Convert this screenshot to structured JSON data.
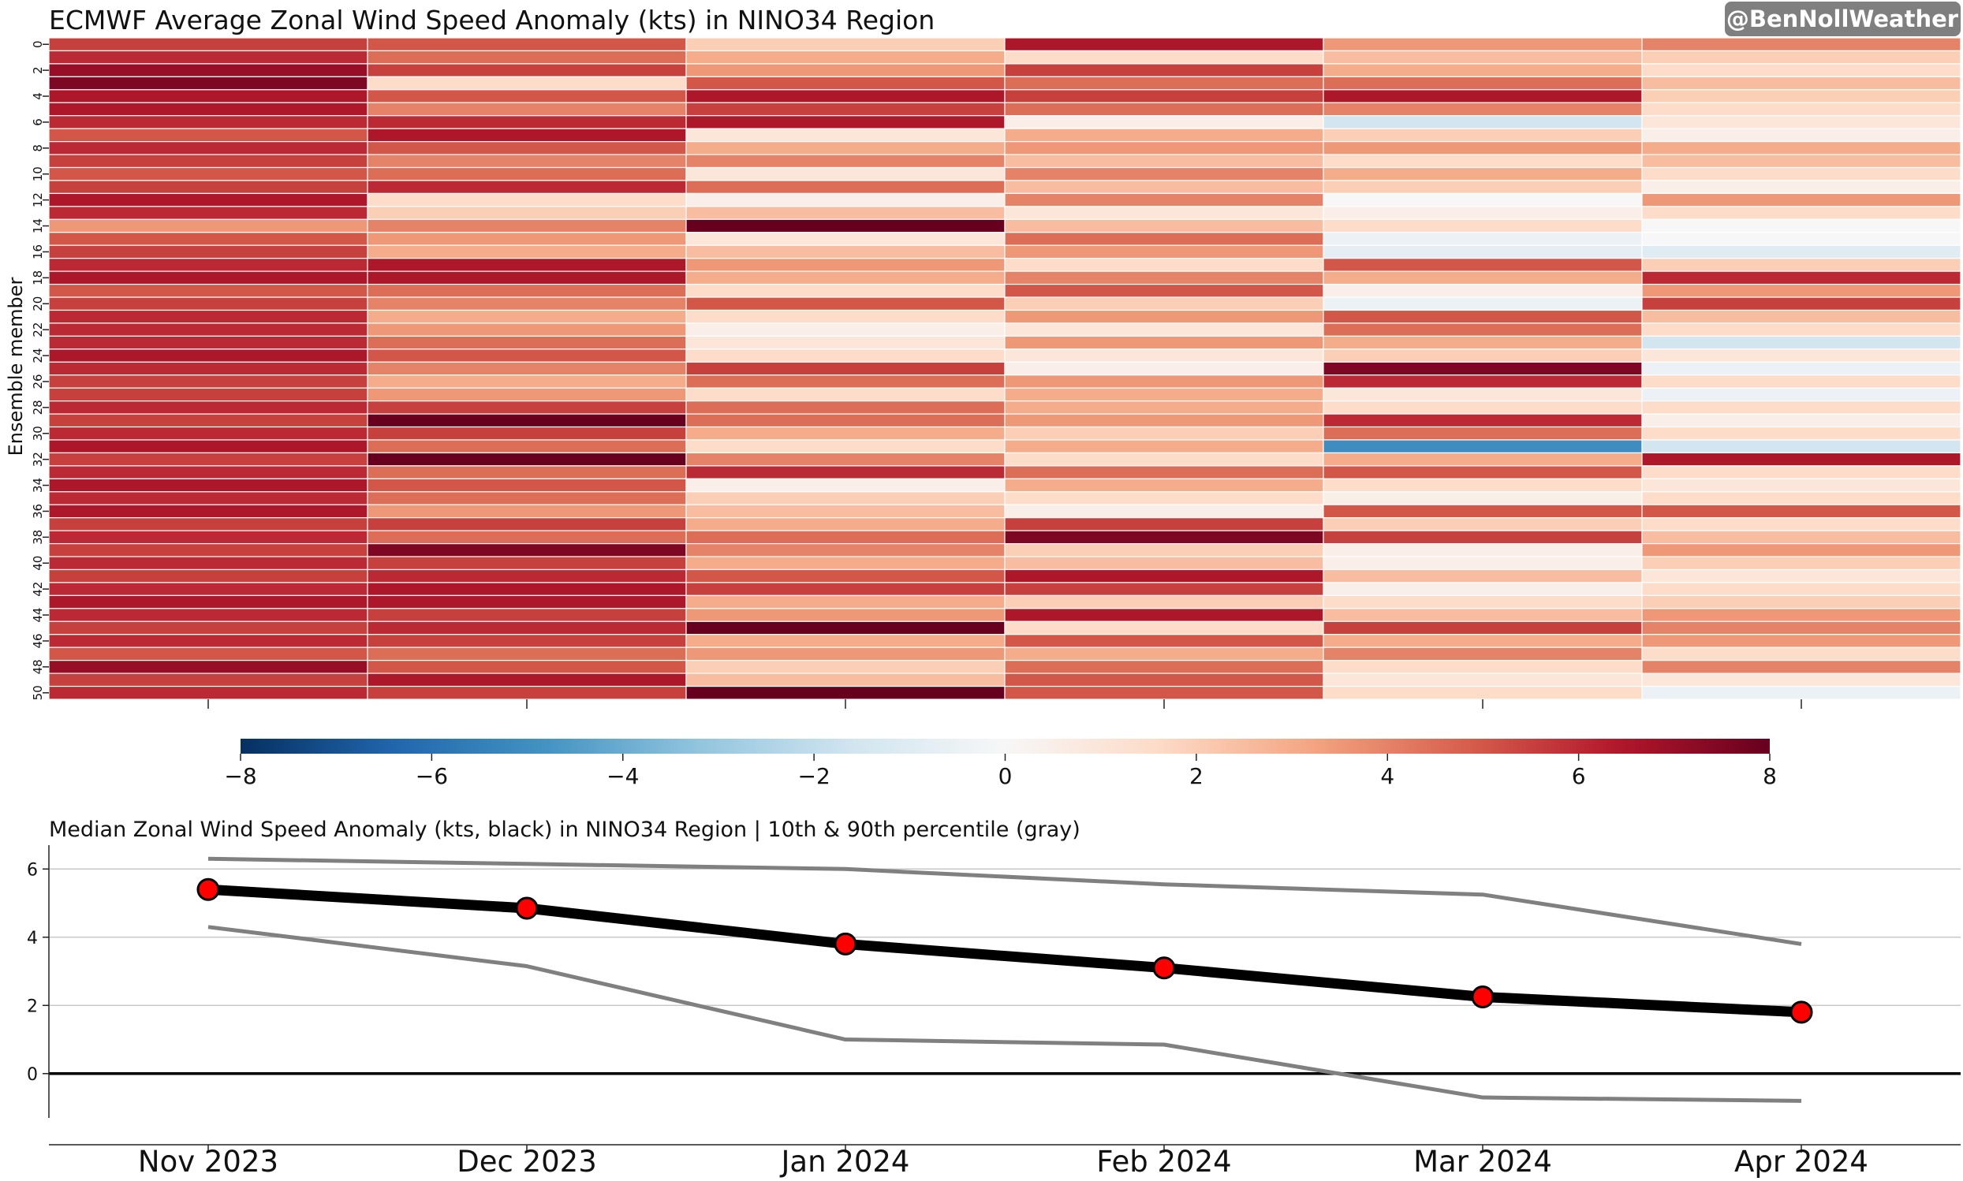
{
  "watermark": "@BenNollWeather",
  "chart_data": [
    {
      "type": "heatmap",
      "title": "ECMWF Average Zonal Wind Speed Anomaly (kts) in NINO34 Region",
      "ylabel": "Ensemble member",
      "y_ticks": [
        "0",
        "2",
        "4",
        "6",
        "8",
        "10",
        "12",
        "14",
        "16",
        "18",
        "20",
        "22",
        "24",
        "26",
        "28",
        "30",
        "32",
        "34",
        "36",
        "38",
        "40",
        "42",
        "44",
        "46",
        "48",
        "50"
      ],
      "columns": [
        "Nov 2023",
        "Dec 2023",
        "Jan 2024",
        "Feb 2024",
        "Mar 2024",
        "Apr 2024"
      ],
      "colorscale": "RdBu_r",
      "vmin": -8,
      "vmax": 8,
      "colorbar_ticks": [
        "−8",
        "−6",
        "−4",
        "−2",
        "0",
        "2",
        "4",
        "6",
        "8"
      ],
      "values": [
        [
          5.5,
          5.0,
          2.0,
          6.5,
          3.5,
          4.0
        ],
        [
          6.0,
          4.5,
          3.0,
          1.5,
          2.5,
          2.0
        ],
        [
          7.0,
          5.5,
          3.5,
          5.5,
          3.0,
          1.5
        ],
        [
          7.5,
          1.5,
          5.0,
          4.5,
          4.5,
          2.5
        ],
        [
          6.5,
          5.0,
          6.5,
          5.5,
          6.5,
          2.0
        ],
        [
          6.5,
          4.0,
          5.5,
          4.5,
          4.0,
          1.5
        ],
        [
          6.0,
          6.0,
          6.5,
          0.5,
          -1.5,
          1.0
        ],
        [
          5.0,
          6.5,
          1.0,
          3.0,
          2.0,
          0.5
        ],
        [
          6.0,
          5.0,
          3.0,
          3.5,
          3.5,
          3.0
        ],
        [
          5.5,
          4.0,
          4.0,
          2.5,
          1.5,
          2.5
        ],
        [
          5.0,
          4.5,
          1.0,
          4.0,
          3.0,
          1.5
        ],
        [
          5.5,
          6.0,
          4.5,
          2.5,
          2.0,
          0.5
        ],
        [
          6.5,
          1.5,
          0.5,
          4.0,
          0.0,
          3.5
        ],
        [
          6.0,
          2.0,
          2.5,
          1.0,
          0.5,
          1.5
        ],
        [
          3.5,
          4.0,
          8.0,
          2.5,
          1.5,
          0.0
        ],
        [
          5.0,
          3.5,
          1.0,
          4.5,
          -0.5,
          0.0
        ],
        [
          5.5,
          3.0,
          2.5,
          3.5,
          -0.8,
          -1.0
        ],
        [
          6.0,
          6.5,
          3.5,
          1.5,
          5.0,
          2.0
        ],
        [
          6.5,
          6.5,
          3.0,
          4.0,
          3.0,
          6.0
        ],
        [
          5.0,
          4.5,
          1.5,
          5.0,
          0.5,
          3.5
        ],
        [
          5.5,
          4.0,
          5.0,
          2.0,
          -0.5,
          5.5
        ],
        [
          6.0,
          3.0,
          1.5,
          3.5,
          5.0,
          2.5
        ],
        [
          6.0,
          3.5,
          0.5,
          1.0,
          4.5,
          1.5
        ],
        [
          6.0,
          4.5,
          1.0,
          3.5,
          3.0,
          -1.5
        ],
        [
          6.5,
          5.0,
          1.5,
          1.0,
          2.0,
          1.0
        ],
        [
          6.0,
          4.0,
          5.5,
          0.5,
          7.5,
          -0.5
        ],
        [
          5.5,
          3.0,
          4.5,
          3.5,
          6.0,
          1.5
        ],
        [
          5.5,
          3.5,
          1.5,
          3.0,
          1.0,
          -0.5
        ],
        [
          6.0,
          5.5,
          4.5,
          3.0,
          1.5,
          1.5
        ],
        [
          5.5,
          8.0,
          4.5,
          3.5,
          6.0,
          0.5
        ],
        [
          6.0,
          5.5,
          3.0,
          2.0,
          4.5,
          1.5
        ],
        [
          6.5,
          4.5,
          1.5,
          3.0,
          -5.0,
          -1.5
        ],
        [
          5.5,
          8.0,
          4.0,
          1.5,
          3.0,
          6.5
        ],
        [
          6.0,
          4.5,
          6.0,
          4.5,
          5.0,
          1.5
        ],
        [
          6.5,
          5.0,
          0.5,
          3.0,
          1.5,
          1.0
        ],
        [
          6.0,
          4.5,
          2.0,
          1.5,
          0.5,
          1.5
        ],
        [
          6.5,
          3.5,
          2.5,
          0.5,
          5.0,
          5.0
        ],
        [
          5.5,
          5.5,
          3.0,
          5.5,
          2.0,
          1.5
        ],
        [
          6.0,
          4.5,
          4.5,
          7.5,
          5.5,
          2.5
        ],
        [
          5.5,
          7.5,
          4.0,
          2.0,
          0.5,
          3.5
        ],
        [
          6.0,
          5.5,
          3.0,
          2.5,
          0.5,
          2.0
        ],
        [
          5.5,
          6.0,
          5.0,
          6.5,
          2.5,
          1.0
        ],
        [
          6.0,
          6.5,
          5.5,
          5.5,
          0.5,
          1.5
        ],
        [
          6.5,
          6.5,
          3.0,
          2.0,
          1.5,
          2.0
        ],
        [
          6.0,
          5.5,
          3.5,
          6.5,
          2.5,
          3.5
        ],
        [
          5.5,
          6.0,
          8.0,
          1.5,
          5.5,
          4.0
        ],
        [
          6.0,
          5.5,
          3.0,
          5.0,
          3.0,
          3.5
        ],
        [
          5.0,
          4.5,
          3.5,
          3.0,
          4.0,
          1.5
        ],
        [
          7.0,
          5.0,
          2.0,
          4.5,
          1.5,
          4.0
        ],
        [
          5.5,
          6.5,
          2.5,
          5.0,
          1.0,
          1.0
        ],
        [
          6.0,
          5.5,
          8.5,
          5.0,
          1.5,
          -0.5
        ]
      ]
    },
    {
      "type": "line",
      "title": "Median Zonal Wind Speed Anomaly (kts, black) in NINO34 Region | 10th & 90th percentile (gray)",
      "categories": [
        "Nov 2023",
        "Dec 2023",
        "Jan 2024",
        "Feb 2024",
        "Mar 2024",
        "Apr 2024"
      ],
      "ylim": [
        -1.3,
        6.7
      ],
      "y_ticks": [
        "0",
        "2",
        "4",
        "6"
      ],
      "grid": true,
      "series": [
        {
          "role": "median",
          "color": "#000000",
          "marker_color": "#ff0000",
          "values": [
            5.4,
            4.85,
            3.8,
            3.1,
            2.25,
            1.8
          ]
        },
        {
          "role": "p90",
          "color": "#808080",
          "values": [
            6.3,
            6.15,
            6.0,
            5.55,
            5.25,
            3.8
          ]
        },
        {
          "role": "p10",
          "color": "#808080",
          "values": [
            4.3,
            3.15,
            1.0,
            0.85,
            -0.7,
            -0.8
          ]
        }
      ]
    }
  ]
}
